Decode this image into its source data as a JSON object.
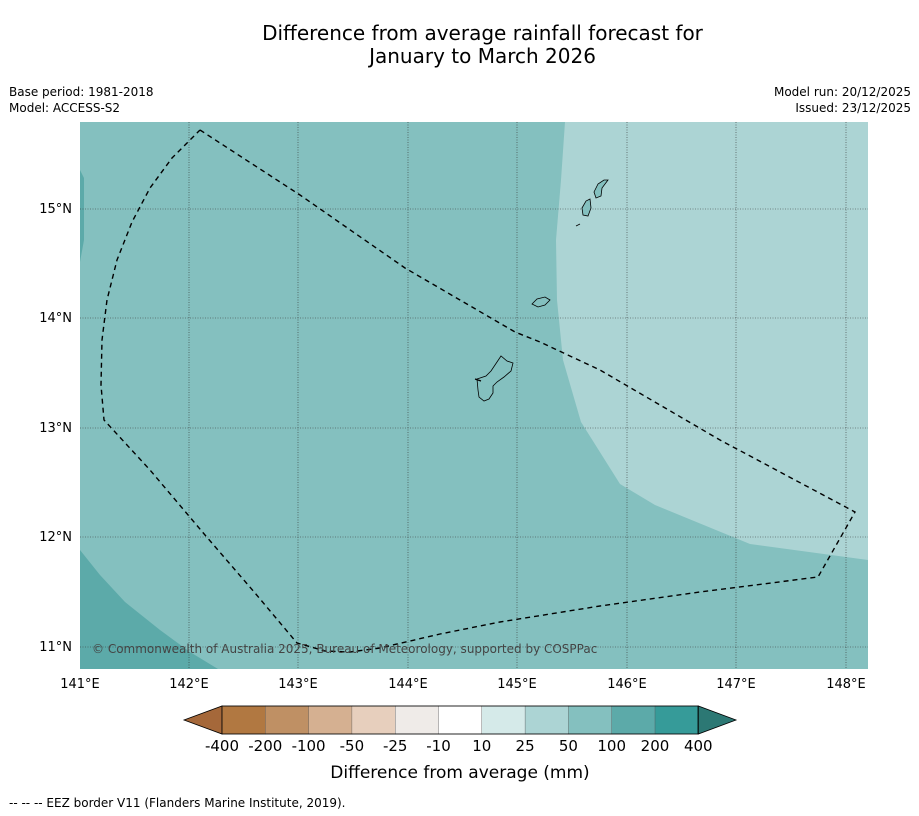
{
  "title": {
    "line1": "Difference from average rainfall forecast for",
    "line2": "January to March 2026"
  },
  "meta": {
    "base_period": "Base period: 1981-2018",
    "model": "Model: ACCESS-S2",
    "model_run": "Model run: 20/12/2025",
    "issued": "Issued: 23/12/2025"
  },
  "map": {
    "lat_labels": [
      "15°N",
      "14°N",
      "13°N",
      "12°N",
      "11°N"
    ],
    "lon_labels": [
      "141°E",
      "142°E",
      "143°E",
      "144°E",
      "145°E",
      "146°E",
      "147°E",
      "148°E"
    ],
    "copyright": "© Commonwealth of Australia 2025, Bureau of Meteorology, supported by COSPPac",
    "colors": {
      "band_50_100": "#84c0bf",
      "band_25_50": "#acd4d4",
      "band_100_200": "#5caaa9"
    }
  },
  "colorbar": {
    "title": "Difference from average (mm)",
    "labels": [
      "-400",
      "-200",
      "-100",
      "-50",
      "-25",
      "-10",
      "10",
      "25",
      "50",
      "100",
      "200",
      "400"
    ],
    "colors": [
      "#a5683a",
      "#b17841",
      "#bf9064",
      "#d5b091",
      "#e7cfbd",
      "#efebe8",
      "#ffffff",
      "#d5eae9",
      "#acd4d4",
      "#84c0bf",
      "#5caaa9",
      "#369b99",
      "#2c7874"
    ]
  },
  "footer": {
    "text": "--  --  -- EEZ border V11 (Flanders Marine Institute, 2019)."
  }
}
